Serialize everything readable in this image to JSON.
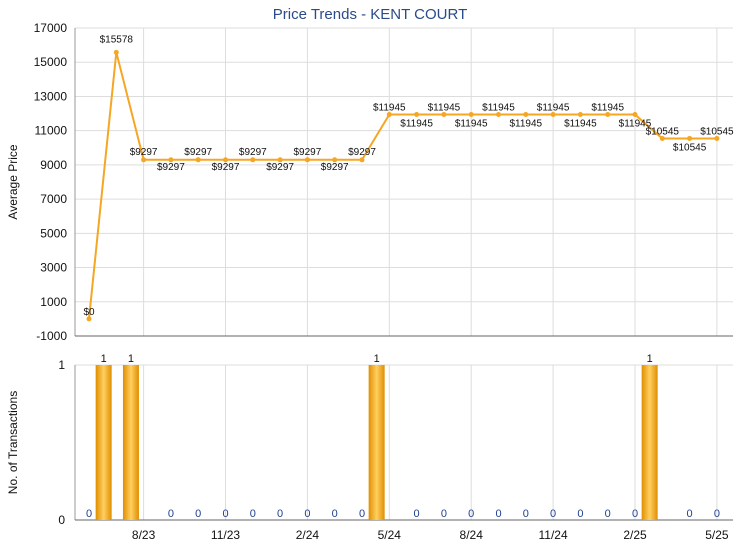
{
  "chart_data": [
    {
      "type": "line",
      "title": "Price Trends - KENT COURT",
      "ylabel": "Average Price",
      "ylim": [
        -1000,
        17000
      ],
      "yticks": [
        "17000",
        "15000",
        "13000",
        "11000",
        "9000",
        "7000",
        "5000",
        "3000",
        "1000",
        "-1000"
      ],
      "x": [
        "2023-06",
        "2023-07",
        "2023-08",
        "2023-09",
        "2023-10",
        "2023-11",
        "2023-12",
        "2024-01",
        "2024-02",
        "2024-03",
        "2024-04",
        "2024-05",
        "2024-06",
        "2024-07",
        "2024-08",
        "2024-09",
        "2024-10",
        "2024-11",
        "2024-12",
        "2025-01",
        "2025-02",
        "2025-03",
        "2025-04",
        "2025-05"
      ],
      "values": [
        0,
        15578,
        9297,
        9297,
        9297,
        9297,
        9297,
        9297,
        9297,
        9297,
        9297,
        11945,
        11945,
        11945,
        11945,
        11945,
        11945,
        11945,
        11945,
        11945,
        11945,
        10545,
        10545,
        10545
      ],
      "labels": [
        "$0",
        "$15578",
        "$9297",
        "$9297",
        "$9297",
        "$9297",
        "$9297",
        "$9297",
        "$9297",
        "$9297",
        "$9297",
        "$11945",
        "$11945",
        "$11945",
        "$11945",
        "$11945",
        "$11945",
        "$11945",
        "$11945",
        "$11945",
        "$11945",
        "$10545",
        "$10545",
        "$10545"
      ],
      "line_color": "#f5a623",
      "grid": true
    },
    {
      "type": "bar",
      "ylabel": "No. of Transactions",
      "ylim": [
        0,
        1
      ],
      "yticks": [
        "1",
        "0"
      ],
      "x": [
        "2023-06",
        "2023-07",
        "2023-08",
        "2023-09",
        "2023-10",
        "2023-11",
        "2023-12",
        "2024-01",
        "2024-02",
        "2024-03",
        "2024-04",
        "2024-05",
        "2024-06",
        "2024-07",
        "2024-08",
        "2024-09",
        "2024-10",
        "2024-11",
        "2024-12",
        "2025-01",
        "2025-02",
        "2025-03",
        "2025-04",
        "2025-05"
      ],
      "values": [
        0,
        1,
        1,
        0,
        0,
        0,
        0,
        0,
        0,
        0,
        0,
        1,
        0,
        0,
        0,
        0,
        0,
        0,
        0,
        0,
        0,
        1,
        0,
        0
      ],
      "labels": [
        "0",
        "1",
        "1",
        "0",
        "0",
        "0",
        "0",
        "0",
        "0",
        "0",
        "0",
        "1",
        "0",
        "0",
        "0",
        "0",
        "0",
        "0",
        "0",
        "0",
        "0",
        "1",
        "0",
        "0"
      ],
      "bar_color": "#f0a010",
      "grid": true
    }
  ],
  "x_axis": {
    "tick_months": [
      "2023-08",
      "2023-11",
      "2024-02",
      "2024-05",
      "2024-08",
      "2024-11",
      "2025-02",
      "2025-05"
    ],
    "tick_labels": [
      "8/23",
      "11/23",
      "2/24",
      "5/24",
      "8/24",
      "11/24",
      "2/25",
      "5/25"
    ]
  }
}
